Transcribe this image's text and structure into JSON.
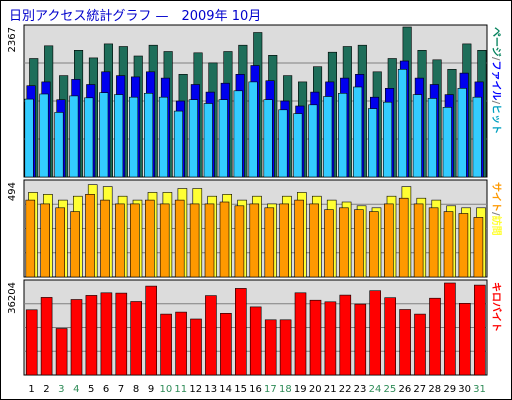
{
  "title": "日別アクセス統計グラフ —　2009年 10月",
  "colors": {
    "page_side": "#00805a",
    "file_side": "#0000ff",
    "hit_side": "#00a0c0",
    "page_bar": "#1e6e5a",
    "file_bar": "#0000ee",
    "hit_bar": "#33ccff",
    "visit_bar": "#ffff33",
    "site_bar": "#ff9900",
    "kbyte_bar": "#ff0000",
    "weekday_label": "#000000",
    "weekend_label": "#2e8b57"
  },
  "chart_data": [
    {
      "type": "bar",
      "panel": "top",
      "ymax_label": "2367",
      "right_label_parts": [
        {
          "text": "ページ",
          "color": "#00805a"
        },
        {
          "text": "/",
          "color": "#808080"
        },
        {
          "text": "ファイル",
          "color": "#0000ff"
        },
        {
          "text": "/",
          "color": "#808080"
        },
        {
          "text": "ヒット",
          "color": "#00a0c0"
        }
      ],
      "ylim": [
        0,
        2367
      ],
      "series": [
        {
          "name": "ページ",
          "values": [
            1870,
            2070,
            1600,
            2000,
            1880,
            2100,
            2060,
            1910,
            2080,
            1980,
            1620,
            1960,
            1800,
            1980,
            2080,
            2280,
            1920,
            1600,
            1500,
            1740,
            1970,
            2060,
            2080,
            1660,
            1870,
            2367,
            2000,
            1850,
            1700,
            2100,
            2000
          ]
        },
        {
          "name": "ファイル",
          "values": [
            1440,
            1500,
            1220,
            1540,
            1460,
            1660,
            1600,
            1580,
            1660,
            1560,
            1200,
            1460,
            1340,
            1480,
            1620,
            1760,
            1520,
            1200,
            1120,
            1340,
            1500,
            1560,
            1620,
            1260,
            1400,
            1830,
            1560,
            1460,
            1300,
            1640,
            1500
          ]
        },
        {
          "name": "ヒット",
          "values": [
            1230,
            1310,
            1020,
            1280,
            1250,
            1330,
            1300,
            1260,
            1320,
            1260,
            1040,
            1220,
            1160,
            1220,
            1360,
            1500,
            1220,
            1060,
            1000,
            1140,
            1270,
            1320,
            1420,
            1080,
            1180,
            1700,
            1300,
            1240,
            1100,
            1400,
            1260
          ]
        }
      ]
    },
    {
      "type": "bar",
      "panel": "middle",
      "ymax_label": "494",
      "right_label_parts": [
        {
          "text": "サイト",
          "color": "#ff9900"
        },
        {
          "text": "/",
          "color": "#808080"
        },
        {
          "text": "訪問",
          "color": "#ffff33"
        }
      ],
      "ylim": [
        0,
        494
      ],
      "series": [
        {
          "name": "訪問",
          "values": [
            440,
            430,
            400,
            420,
            480,
            470,
            420,
            400,
            440,
            440,
            460,
            460,
            420,
            430,
            400,
            420,
            380,
            420,
            440,
            420,
            400,
            390,
            370,
            360,
            420,
            470,
            410,
            400,
            370,
            360,
            360
          ]
        },
        {
          "name": "サイト",
          "values": [
            400,
            380,
            360,
            340,
            430,
            400,
            380,
            380,
            400,
            380,
            400,
            380,
            380,
            390,
            370,
            380,
            360,
            380,
            400,
            380,
            350,
            360,
            350,
            340,
            380,
            410,
            380,
            360,
            340,
            330,
            310
          ]
        }
      ]
    },
    {
      "type": "bar",
      "panel": "bottom",
      "ymax_label": "36204",
      "right_label_parts": [
        {
          "text": "キロバイト",
          "color": "#ff0000"
        }
      ],
      "ylim": [
        0,
        36204
      ],
      "series": [
        {
          "name": "キロバイト",
          "values": [
            25400,
            30200,
            18100,
            29400,
            31000,
            32000,
            31900,
            28600,
            34600,
            23700,
            24500,
            21800,
            30900,
            24000,
            33700,
            26500,
            21500,
            21500,
            32000,
            29100,
            28500,
            31100,
            27600,
            32800,
            30100,
            25500,
            23700,
            29900,
            35800,
            27900,
            35000
          ]
        }
      ]
    }
  ],
  "days": [
    "1",
    "2",
    "3",
    "4",
    "5",
    "6",
    "7",
    "8",
    "9",
    "10",
    "11",
    "12",
    "13",
    "14",
    "15",
    "16",
    "17",
    "18",
    "19",
    "20",
    "21",
    "22",
    "23",
    "24",
    "25",
    "26",
    "27",
    "28",
    "29",
    "30",
    "31"
  ],
  "weekend_days": [
    "3",
    "4",
    "10",
    "11",
    "17",
    "18",
    "24",
    "25",
    "31"
  ]
}
